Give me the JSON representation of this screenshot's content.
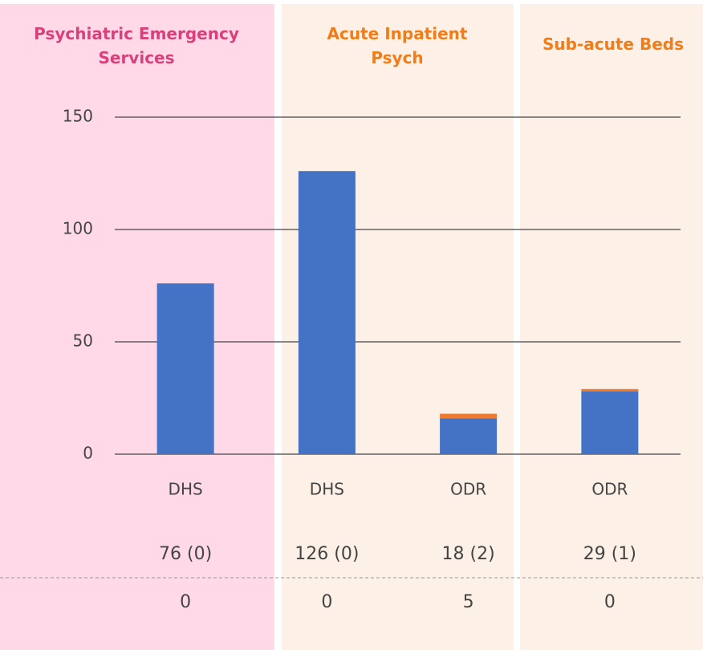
{
  "chart_data": {
    "type": "bar",
    "stacked": true,
    "panels": [
      {
        "title": "Psychiatric Emergency Services",
        "title_color": "#d9407a",
        "background": "#ffd9e8"
      },
      {
        "title": "Acute Inpatient Psych",
        "title_color": "#f27c17",
        "background": "#fdf1e7"
      },
      {
        "title": "Sub-acute Beds",
        "title_color": "#f27c17",
        "background": "#fdf1e7"
      }
    ],
    "categories": [
      "DHS",
      "DHS",
      "ODR",
      "ODR"
    ],
    "series": [
      {
        "color": "#4472c4",
        "values": [
          76,
          126,
          16,
          28
        ]
      },
      {
        "color": "#ed7d31",
        "values": [
          0,
          0,
          2,
          1
        ]
      }
    ],
    "ylim": [
      0,
      150
    ],
    "yticks": [
      0,
      50,
      100,
      150
    ],
    "grid": true,
    "table_rows": [
      [
        "76 (0)",
        "126 (0)",
        "18 (2)",
        "29 (1)"
      ],
      [
        "0",
        "0",
        "5",
        "0"
      ]
    ]
  }
}
